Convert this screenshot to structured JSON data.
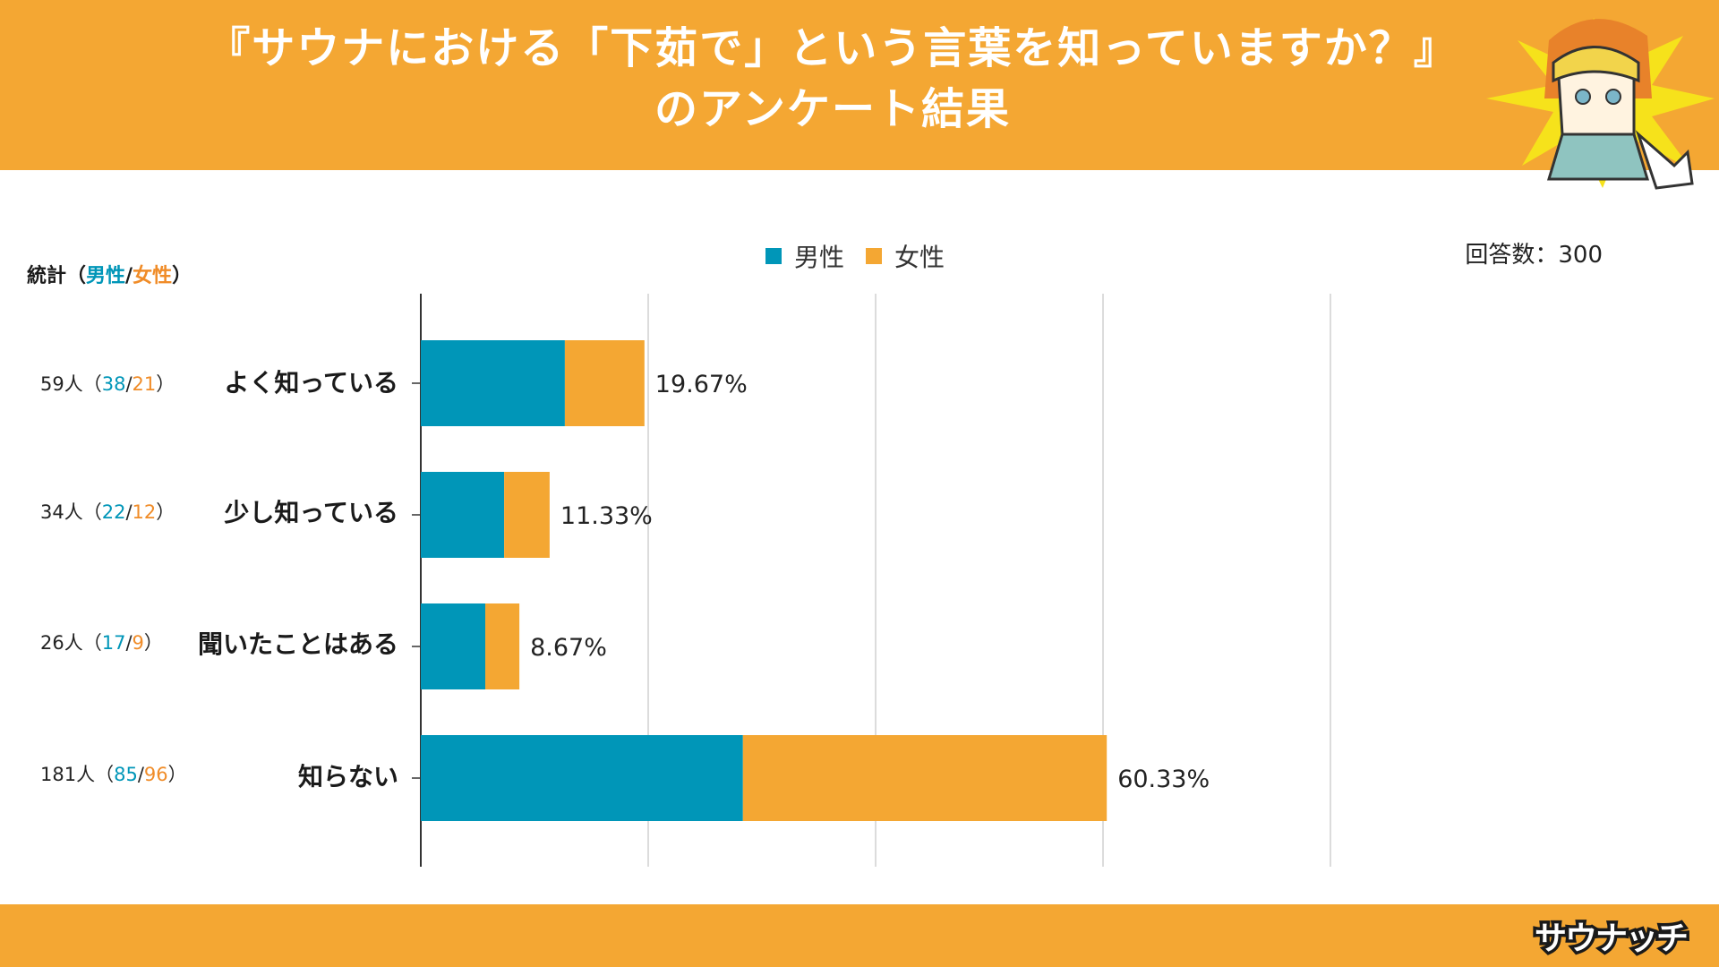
{
  "title": {
    "line1": "『サウナにおける「下茹で」という言葉を知っていますか？』",
    "line2": "のアンケート結果"
  },
  "response_count": "回答数：300",
  "stats_header": {
    "prefix": "統計（",
    "male": "男性",
    "slash": "/",
    "female": "女性",
    "suffix": "）"
  },
  "brand": {
    "logo_text": "サウナッチ"
  },
  "colors": {
    "header": "#F4A733",
    "male": "#0096B8",
    "female": "#F4A733"
  },
  "chart_data": {
    "type": "bar",
    "orientation": "horizontal",
    "stacked": true,
    "legend": [
      "男性",
      "女性"
    ],
    "categories": [
      "よく知っている",
      "少し知っている",
      "聞いたことはある",
      "知らない"
    ],
    "series": [
      {
        "name": "男性",
        "values": [
          12.67,
          7.33,
          5.67,
          28.33
        ]
      },
      {
        "name": "女性",
        "values": [
          7.0,
          4.0,
          3.0,
          32.0
        ]
      }
    ],
    "totals": [
      "19.67%",
      "11.33%",
      "8.67%",
      "60.33%"
    ],
    "xlim": [
      0,
      100
    ],
    "grid": true,
    "stats": [
      {
        "total": "59人",
        "male": "38",
        "female": "21"
      },
      {
        "total": "34人",
        "male": "22",
        "female": "12"
      },
      {
        "total": "26人",
        "male": "17",
        "female": "9"
      },
      {
        "total": "181人",
        "male": "85",
        "female": "96"
      }
    ]
  }
}
